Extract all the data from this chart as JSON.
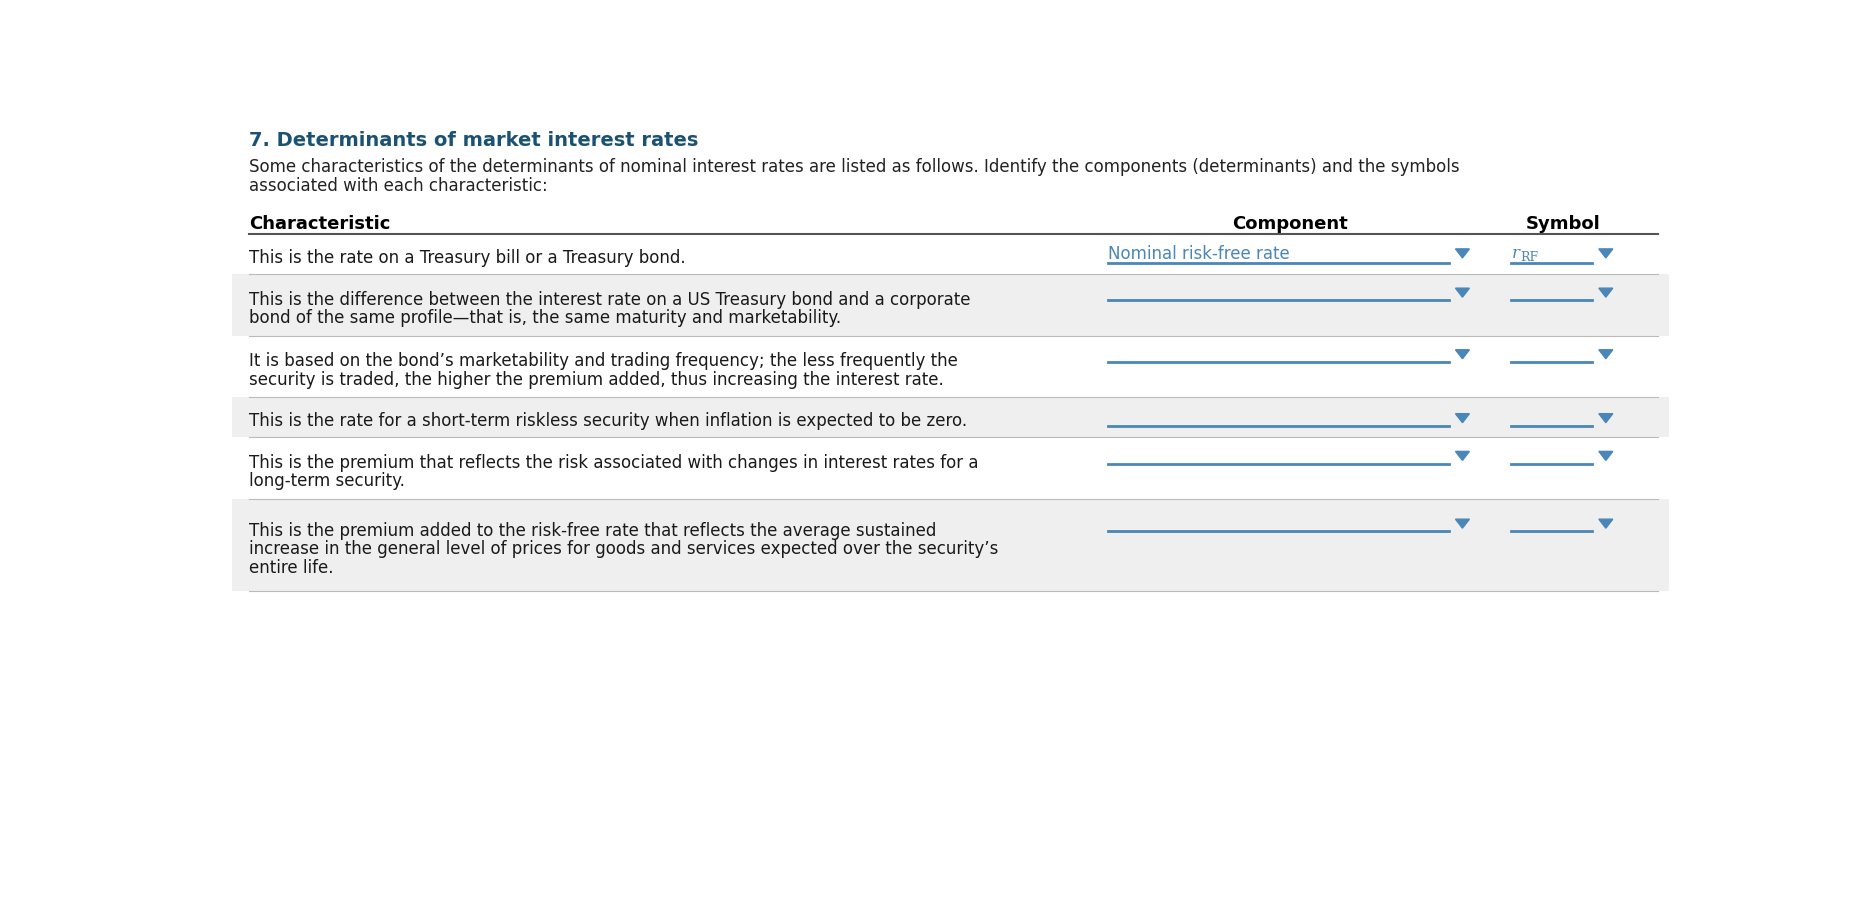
{
  "title": "7. Determinants of market interest rates",
  "subtitle_line1": "Some characteristics of the determinants of nominal interest rates are listed as follows. Identify the components (determinants) and the symbols",
  "subtitle_line2": "associated with each characteristic:",
  "header_characteristic": "Characteristic",
  "header_component": "Component",
  "header_symbol": "Symbol",
  "title_color": "#1a5276",
  "header_text_color": "#000000",
  "body_text_color": "#1a1a1a",
  "dropdown_color": "#4a86b8",
  "line_color": "#4a86b8",
  "bg_color": "#ffffff",
  "row_alt_color": "#efefef",
  "row_white_color": "#ffffff",
  "first_row_component_text": "Nominal risk-free rate",
  "first_row_component_color": "#4a86b8",
  "rows": [
    {
      "text": "This is the rate on a Treasury bill or a Treasury bond.",
      "num_lines": 1,
      "bg": "#ffffff",
      "show_filled_component": true
    },
    {
      "text": "This is the difference between the interest rate on a US Treasury bond and a corporate\nbond of the same profile—that is, the same maturity and marketability.",
      "num_lines": 2,
      "bg": "#efefef",
      "show_filled_component": false
    },
    {
      "text": "It is based on the bond’s marketability and trading frequency; the less frequently the\nsecurity is traded, the higher the premium added, thus increasing the interest rate.",
      "num_lines": 2,
      "bg": "#ffffff",
      "show_filled_component": false
    },
    {
      "text": "This is the rate for a short-term riskless security when inflation is expected to be zero.",
      "num_lines": 1,
      "bg": "#efefef",
      "show_filled_component": false
    },
    {
      "text": "This is the premium that reflects the risk associated with changes in interest rates for a\nlong-term security.",
      "num_lines": 2,
      "bg": "#ffffff",
      "show_filled_component": false
    },
    {
      "text": "This is the premium added to the risk-free rate that reflects the average sustained\nincrease in the general level of prices for goods and services expected over the security’s\nentire life.",
      "num_lines": 3,
      "bg": "#efefef",
      "show_filled_component": false
    }
  ]
}
